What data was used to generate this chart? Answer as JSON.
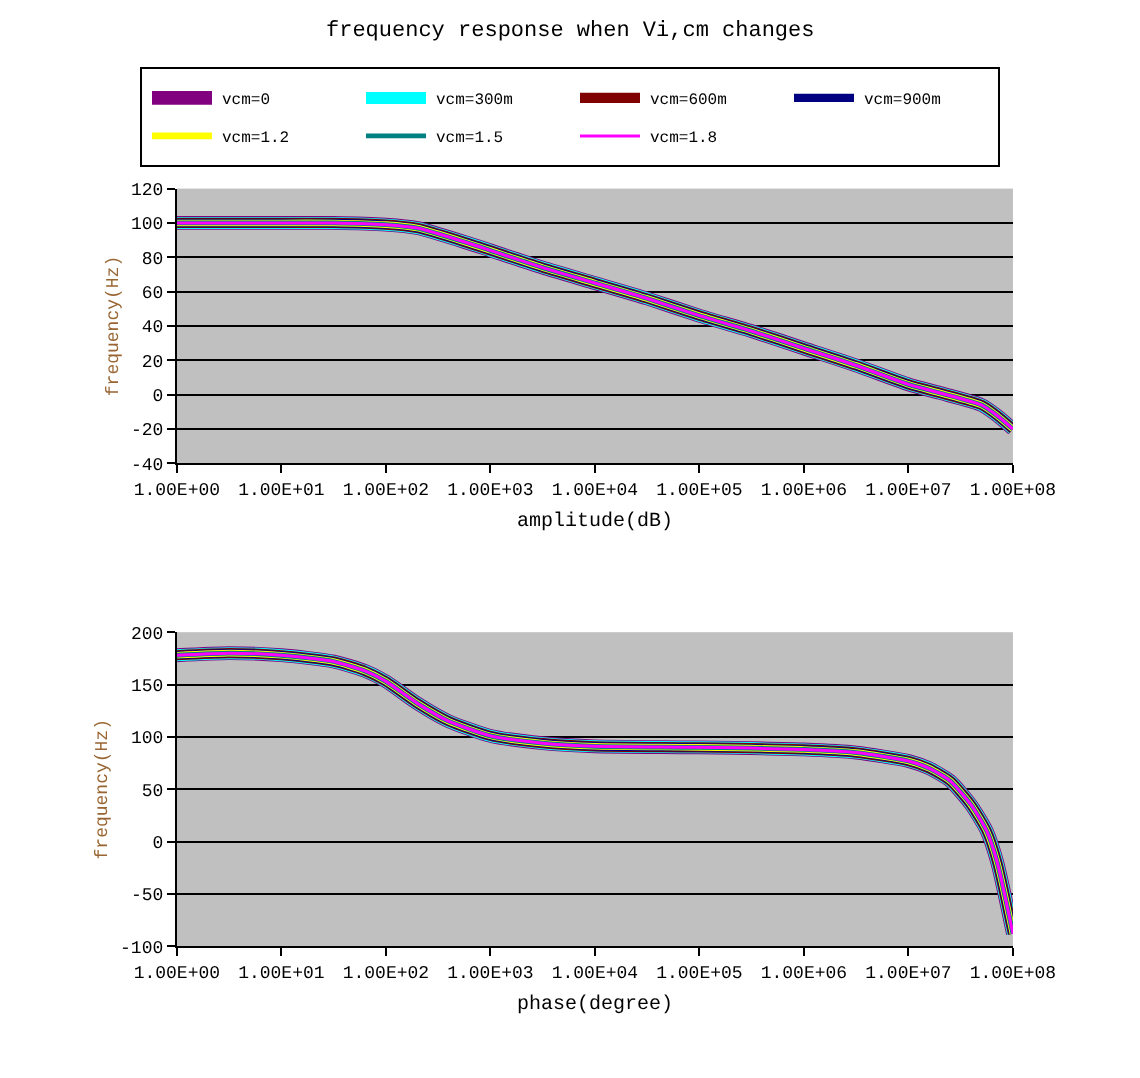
{
  "chart_data": [
    {
      "type": "line",
      "title": "frequency response when Vi,cm changes",
      "xlabel": "amplitude(dB)",
      "ylabel": "frequency(Hz)",
      "log": "x",
      "grid": "y",
      "legend": "top",
      "x": [
        1,
        10,
        31.6,
        100,
        200,
        631,
        1000,
        3162,
        10000,
        31623,
        100000,
        316228,
        1000000,
        3162278,
        10000000,
        20000000,
        50000000,
        70000000,
        100000000
      ],
      "xlim": [
        1,
        100000000
      ],
      "ylim": [
        -40,
        120
      ],
      "xticks": [
        {
          "value": 1,
          "label": "1.00E+00"
        },
        {
          "value": 10,
          "label": "1.00E+01"
        },
        {
          "value": 100,
          "label": "1.00E+02"
        },
        {
          "value": 1000,
          "label": "1.00E+03"
        },
        {
          "value": 10000,
          "label": "1.00E+04"
        },
        {
          "value": 100000,
          "label": "1.00E+05"
        },
        {
          "value": 1000000,
          "label": "1.00E+06"
        },
        {
          "value": 10000000,
          "label": "1.00E+07"
        },
        {
          "value": 100000000,
          "label": "1.00E+08"
        }
      ],
      "yticks": [
        -40,
        -20,
        0,
        20,
        40,
        60,
        80,
        100,
        120
      ],
      "series": [
        {
          "name": "vcm=0",
          "color": "#800080",
          "values": [
            100,
            100,
            100,
            99,
            97,
            88,
            84,
            74,
            65,
            56,
            46,
            37,
            27,
            17,
            6,
            1,
            -6,
            -12,
            -20
          ]
        },
        {
          "name": "vcm=300m",
          "color": "#00ffff",
          "values": [
            100,
            100,
            100,
            99,
            97,
            88,
            84,
            74,
            65,
            56,
            46,
            37,
            27,
            17,
            6,
            1,
            -6,
            -12,
            -20
          ]
        },
        {
          "name": "vcm=600m",
          "color": "#800000",
          "values": [
            100,
            100,
            100,
            99,
            97,
            88,
            84,
            74,
            65,
            56,
            46,
            37,
            27,
            17,
            6,
            1,
            -6,
            -12,
            -20
          ]
        },
        {
          "name": "vcm=900m",
          "color": "#000080",
          "values": [
            100,
            100,
            100,
            99,
            97,
            88,
            84,
            74,
            65,
            56,
            46,
            37,
            27,
            17,
            6,
            1,
            -6,
            -12,
            -20
          ]
        },
        {
          "name": "vcm=1.2",
          "color": "#ffff00",
          "values": [
            100,
            100,
            100,
            99,
            97,
            88,
            84,
            74,
            65,
            56,
            46,
            37,
            27,
            17,
            6,
            1,
            -6,
            -12,
            -20
          ]
        },
        {
          "name": "vcm=1.5",
          "color": "#008080",
          "values": [
            100,
            100,
            100,
            99,
            97,
            88,
            84,
            74,
            65,
            56,
            46,
            37,
            27,
            17,
            6,
            1,
            -6,
            -12,
            -20
          ]
        },
        {
          "name": "vcm=1.8",
          "color": "#ff00ff",
          "values": [
            100,
            100,
            100,
            99,
            97,
            88,
            84,
            74,
            65,
            56,
            46,
            37,
            27,
            17,
            6,
            1,
            -6,
            -12,
            -20
          ]
        }
      ]
    },
    {
      "type": "line",
      "xlabel": "phase(degree)",
      "ylabel": "frequency(Hz)",
      "log": "x",
      "grid": "y",
      "x": [
        1,
        3.16,
        10,
        31.6,
        63,
        100,
        200,
        398,
        1000,
        3162,
        10000,
        100000,
        1000000,
        3162278,
        10000000,
        15800000,
        25100000,
        39800000,
        56200000,
        70800000,
        100000000
      ],
      "xlim": [
        1,
        100000000
      ],
      "ylim": [
        -100,
        200
      ],
      "xticks": [
        {
          "value": 1,
          "label": "1.00E+00"
        },
        {
          "value": 10,
          "label": "1.00E+01"
        },
        {
          "value": 100,
          "label": "1.00E+02"
        },
        {
          "value": 1000,
          "label": "1.00E+03"
        },
        {
          "value": 10000,
          "label": "1.00E+04"
        },
        {
          "value": 100000,
          "label": "1.00E+05"
        },
        {
          "value": 1000000,
          "label": "1.00E+06"
        },
        {
          "value": 10000000,
          "label": "1.00E+07"
        },
        {
          "value": 100000000,
          "label": "1.00E+08"
        }
      ],
      "yticks": [
        -100,
        -50,
        0,
        50,
        100,
        150,
        200
      ],
      "series": [
        {
          "color": "#800080",
          "values": [
            178,
            180,
            178,
            172,
            163,
            153,
            132,
            115,
            101,
            94,
            91,
            90,
            88,
            85,
            77,
            70,
            58,
            35,
            10,
            -20,
            -88
          ]
        },
        {
          "color": "#00ffff",
          "values": [
            178,
            180,
            178,
            172,
            163,
            153,
            132,
            115,
            101,
            94,
            91,
            90,
            88,
            85,
            77,
            70,
            58,
            35,
            10,
            -20,
            -88
          ]
        },
        {
          "color": "#800000",
          "values": [
            178,
            180,
            178,
            172,
            163,
            153,
            132,
            115,
            101,
            94,
            91,
            90,
            88,
            85,
            77,
            70,
            58,
            35,
            10,
            -20,
            -88
          ]
        },
        {
          "color": "#000080",
          "values": [
            178,
            180,
            178,
            172,
            163,
            153,
            132,
            115,
            101,
            94,
            91,
            90,
            88,
            85,
            77,
            70,
            58,
            35,
            10,
            -20,
            -88
          ]
        },
        {
          "color": "#ffff00",
          "values": [
            178,
            180,
            178,
            172,
            163,
            153,
            132,
            115,
            101,
            94,
            91,
            90,
            88,
            85,
            77,
            70,
            58,
            35,
            10,
            -20,
            -88
          ]
        },
        {
          "color": "#008080",
          "values": [
            178,
            180,
            178,
            172,
            163,
            153,
            132,
            115,
            101,
            94,
            91,
            90,
            88,
            85,
            77,
            70,
            58,
            35,
            10,
            -20,
            -88
          ]
        },
        {
          "color": "#ff00ff",
          "values": [
            178,
            180,
            178,
            172,
            163,
            153,
            132,
            115,
            101,
            94,
            91,
            90,
            88,
            85,
            77,
            70,
            58,
            35,
            10,
            -20,
            -88
          ]
        }
      ]
    }
  ]
}
